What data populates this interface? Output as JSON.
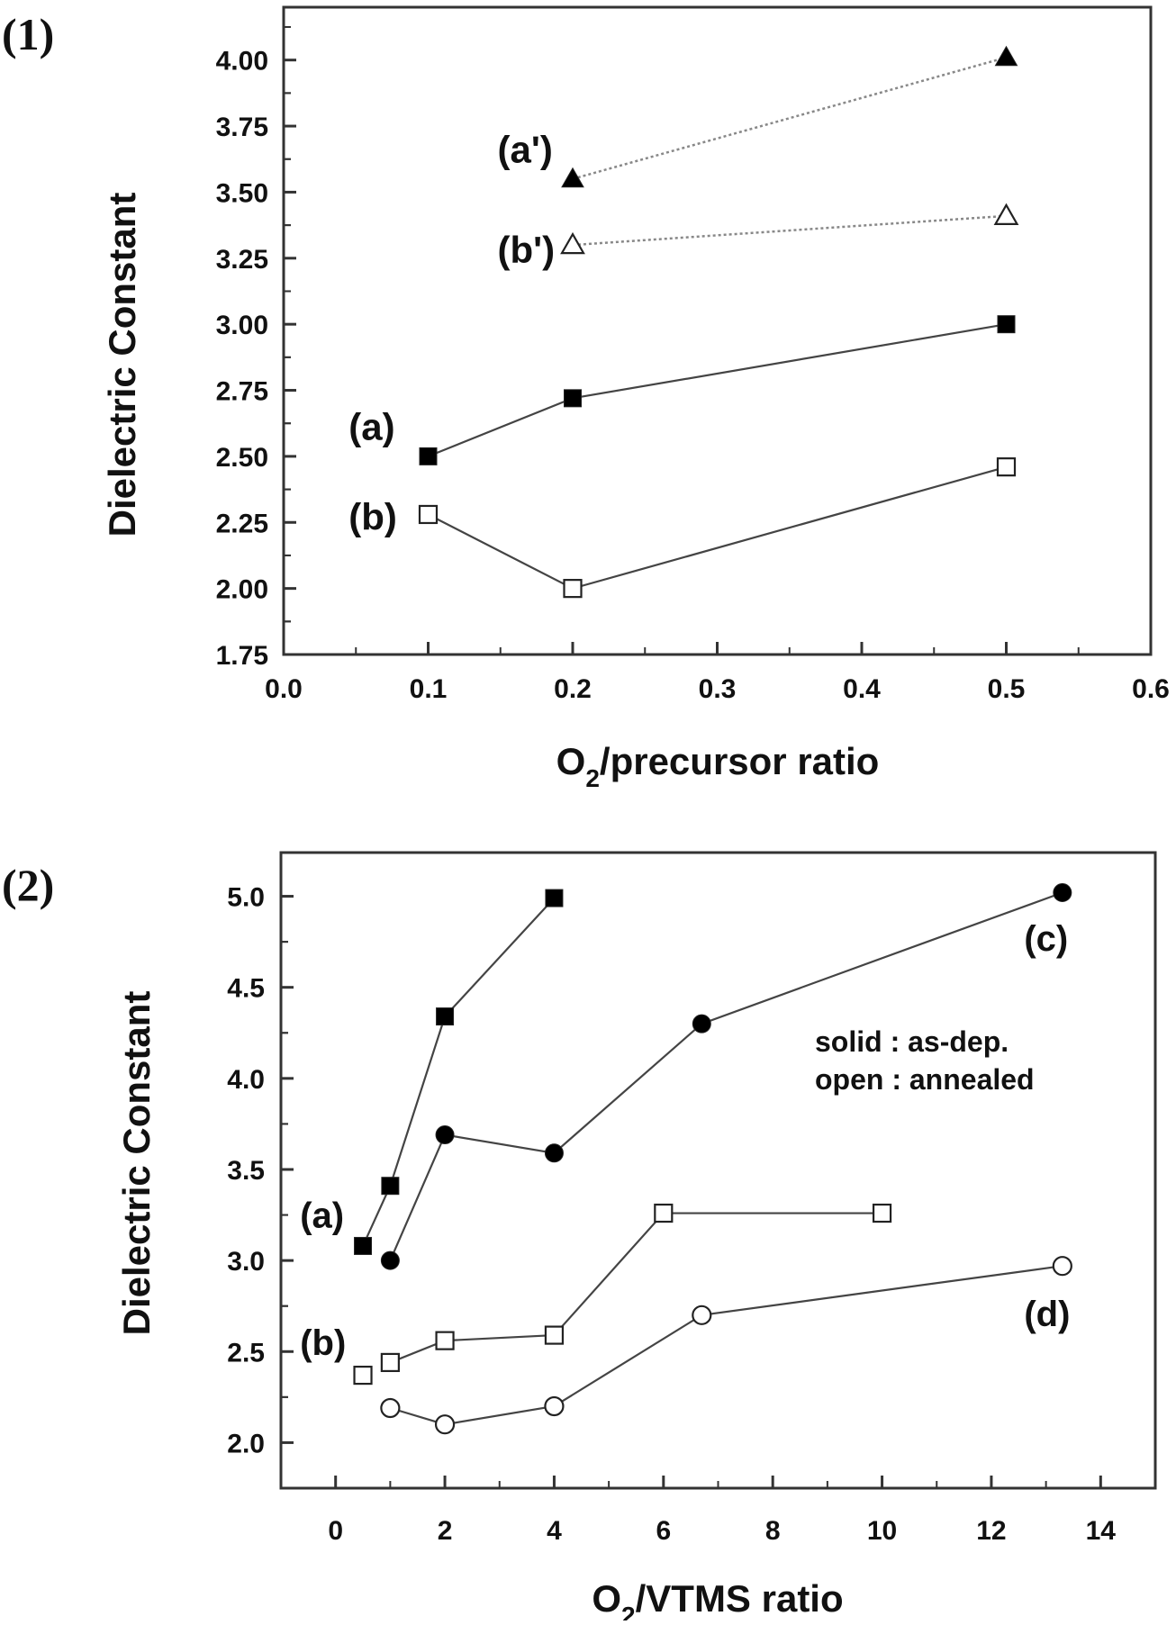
{
  "figure": {
    "panels": [
      {
        "tag": "(1)"
      },
      {
        "tag": "(2)"
      }
    ]
  },
  "chart_data": [
    {
      "type": "line",
      "panel": "(1)",
      "title": "",
      "xlabel": "O2/precursor ratio",
      "xlabel_main": "O",
      "xlabel_sub": "2",
      "xlabel_rest": "/precursor ratio",
      "ylabel": "Dielectric Constant",
      "xlim": [
        0.0,
        0.6
      ],
      "ylim": [
        1.75,
        4.2
      ],
      "xticks": [
        0.0,
        0.1,
        0.2,
        0.3,
        0.4,
        0.5,
        0.6
      ],
      "xtick_labels": [
        "0.0",
        "0.1",
        "0.2",
        "0.3",
        "0.4",
        "0.5",
        "0.6"
      ],
      "yticks": [
        1.75,
        2.0,
        2.25,
        2.5,
        2.75,
        3.0,
        3.25,
        3.5,
        3.75,
        4.0
      ],
      "ytick_labels": [
        "1.75",
        "2.00",
        "2.25",
        "2.50",
        "2.75",
        "3.00",
        "3.25",
        "3.50",
        "3.75",
        "4.00"
      ],
      "grid": false,
      "series": [
        {
          "name": "(a)",
          "marker": "square",
          "filled": true,
          "line": "solid",
          "x": [
            0.1,
            0.2,
            0.5
          ],
          "y": [
            2.5,
            2.72,
            3.0
          ],
          "label_pos": [
            0.045,
            2.61
          ]
        },
        {
          "name": "(b)",
          "marker": "square",
          "filled": false,
          "line": "solid",
          "x": [
            0.1,
            0.2,
            0.5
          ],
          "y": [
            2.28,
            2.0,
            2.46
          ],
          "label_pos": [
            0.045,
            2.27
          ]
        },
        {
          "name": "(a')",
          "marker": "triangle",
          "filled": true,
          "line": "dotted",
          "x": [
            0.2,
            0.5
          ],
          "y": [
            3.55,
            4.01
          ],
          "label_pos": [
            0.148,
            3.66
          ]
        },
        {
          "name": "(b')",
          "marker": "triangle",
          "filled": false,
          "line": "dotted",
          "x": [
            0.2,
            0.5
          ],
          "y": [
            3.3,
            3.41
          ],
          "label_pos": [
            0.148,
            3.28
          ]
        }
      ]
    },
    {
      "type": "line",
      "panel": "(2)",
      "title": "",
      "xlabel": "O2/VTMS ratio",
      "xlabel_main": "O",
      "xlabel_sub": "2",
      "xlabel_rest": "/VTMS ratio",
      "ylabel": "Dielectric Constant",
      "xlim": [
        -1,
        15
      ],
      "ylim": [
        1.75,
        5.24
      ],
      "xticks": [
        0,
        2,
        4,
        6,
        8,
        10,
        12,
        14
      ],
      "xtick_labels": [
        "0",
        "2",
        "4",
        "6",
        "8",
        "10",
        "12",
        "14"
      ],
      "yticks": [
        2.0,
        2.5,
        3.0,
        3.5,
        4.0,
        4.5,
        5.0
      ],
      "ytick_labels": [
        "2.0",
        "2.5",
        "3.0",
        "3.5",
        "4.0",
        "4.5",
        "5.0"
      ],
      "grid": false,
      "annotation": [
        "solid : as-dep.",
        "open : annealed"
      ],
      "series": [
        {
          "name": "(a)",
          "marker": "square",
          "filled": true,
          "line": "solid",
          "x": [
            0.5,
            1,
            2,
            4
          ],
          "y": [
            3.08,
            3.41,
            4.34,
            4.99
          ],
          "label_pos": [
            -0.65,
            3.25
          ]
        },
        {
          "name": "(c)",
          "marker": "circle",
          "filled": true,
          "line": "solid",
          "x": [
            1,
            2,
            4,
            6.7,
            13.3
          ],
          "y": [
            3.0,
            3.69,
            3.59,
            4.3,
            5.02
          ],
          "label_pos": [
            12.6,
            4.77
          ]
        },
        {
          "name": "(b)",
          "marker": "square",
          "filled": false,
          "line": "solid",
          "x": [
            0.5,
            1,
            2,
            4,
            6,
            10
          ],
          "y": [
            2.37,
            2.44,
            2.56,
            2.59,
            3.26,
            3.26
          ],
          "label_pos": [
            -0.65,
            2.55
          ]
        },
        {
          "name": "(d)",
          "marker": "circle",
          "filled": false,
          "line": "solid",
          "x": [
            1,
            2,
            4,
            6.7,
            13.3
          ],
          "y": [
            2.19,
            2.1,
            2.2,
            2.7,
            2.97
          ],
          "label_pos": [
            12.6,
            2.71
          ]
        }
      ]
    }
  ]
}
